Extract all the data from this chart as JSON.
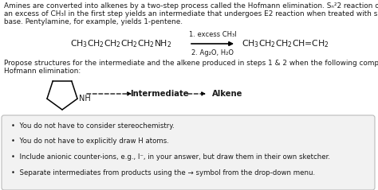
{
  "background_color": "#ffffff",
  "text_color": "#1a1a1a",
  "line1": "Amines are converted into alkenes by a two-step process called the Hofmann elimination. Sₙ²2 reaction of the amine with",
  "line2": "an excess of CH₃I in the first step yields an intermediate that undergoes E2 reaction when treated with silver oxide as a",
  "line3": "base. Pentylamine, for example, yields 1-pentene.",
  "step1": "1. excess CH₃I",
  "step2": "2. Ag₂O, H₂O",
  "propose1": "Propose structures for the intermediate and the alkene produced in steps 1 & 2 when the following compound undergoes",
  "propose2": "Hofmann elimination:",
  "intermediate_label": "Intermediate",
  "alkene_label": "Alkene",
  "bullet_points": [
    "You do not have to consider stereochemistry.",
    "You do not have to explicitly draw H atoms.",
    "Include anionic counter-ions, e.g., I⁻, in your answer, but draw them in their own sketcher.",
    "Separate intermediates from products using the → symbol from the drop-down menu."
  ],
  "box_bg": "#f2f2f2",
  "box_border": "#bbbbbb"
}
